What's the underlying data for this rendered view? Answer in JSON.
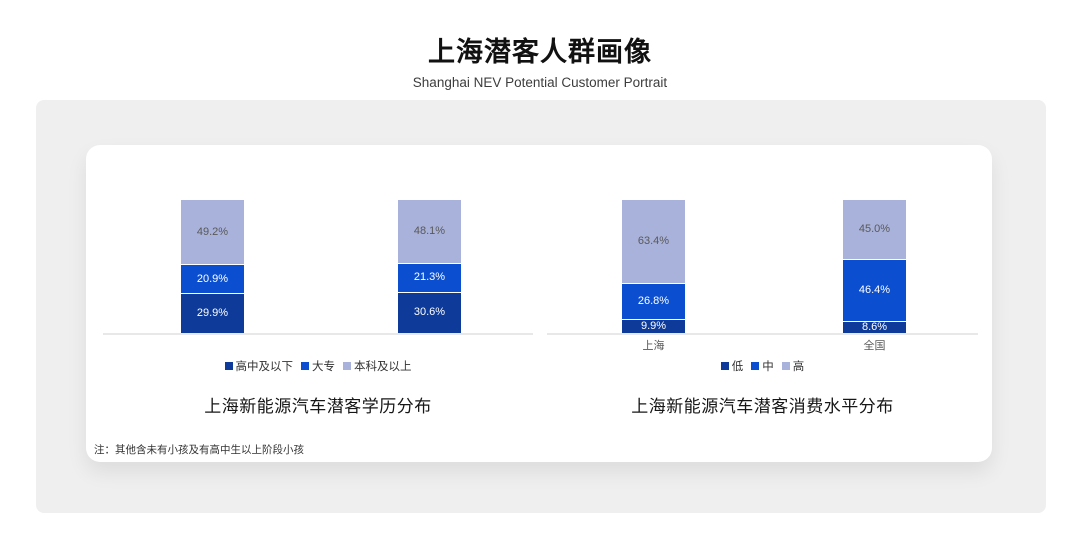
{
  "header": {
    "title": "上海潜客人群画像",
    "subtitle": "Shanghai NEV Potential Customer Portrait"
  },
  "footnote": "注：其他含未有小孩及有高中生以上阶段小孩",
  "colors": {
    "dark_blue": "#0e3b99",
    "mid_blue": "#0b4fd0",
    "light_lavender": "#a9b2da",
    "panel_gray": "#efefef",
    "axis_gray": "#e8e8e8"
  },
  "chart_data": [
    {
      "type": "bar",
      "stacked": true,
      "title": "上海新能源汽车潜客学历分布",
      "categories": [
        "",
        ""
      ],
      "series": [
        {
          "name": "高中及以下",
          "color": "#0e3b99",
          "label_color": "#ffffff",
          "values": [
            29.9,
            30.6
          ]
        },
        {
          "name": "大专",
          "color": "#0b4fd0",
          "label_color": "#ffffff",
          "values": [
            20.9,
            21.3
          ]
        },
        {
          "name": "本科及以上",
          "color": "#a9b2da",
          "label_color": "#595959",
          "values": [
            49.2,
            48.1
          ]
        }
      ],
      "value_suffix": "%",
      "ylim": [
        0,
        100
      ],
      "grid": false,
      "legend_position": "bottom"
    },
    {
      "type": "bar",
      "stacked": true,
      "title": "上海新能源汽车潜客消费水平分布",
      "categories": [
        "上海",
        "全国"
      ],
      "series": [
        {
          "name": "低",
          "color": "#0e3b99",
          "label_color": "#ffffff",
          "values": [
            9.9,
            8.6
          ]
        },
        {
          "name": "中",
          "color": "#0b4fd0",
          "label_color": "#ffffff",
          "values": [
            26.8,
            46.4
          ]
        },
        {
          "name": "高",
          "color": "#a9b2da",
          "label_color": "#595959",
          "values": [
            63.4,
            45.0
          ]
        }
      ],
      "value_suffix": "%",
      "ylim": [
        0,
        100
      ],
      "grid": false,
      "legend_position": "bottom"
    }
  ]
}
